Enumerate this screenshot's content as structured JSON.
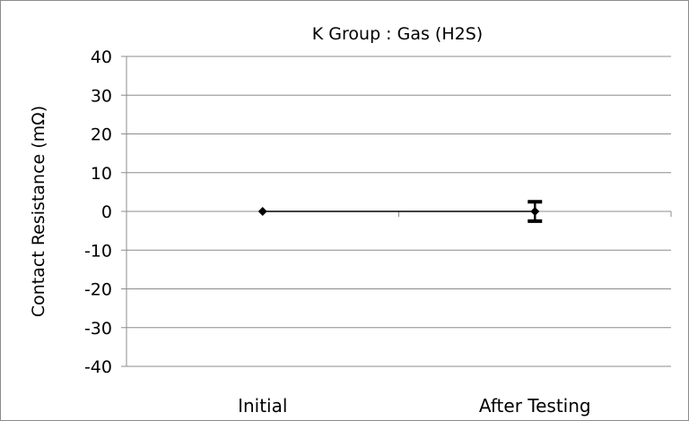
{
  "chart_data": {
    "type": "line",
    "title": "K Group : Gas (H2S)",
    "xlabel": "",
    "ylabel": "Contact Resistance (mΩ)",
    "categories": [
      "Initial",
      "After Testing"
    ],
    "series": [
      {
        "values": [
          0,
          0
        ],
        "error_low": [
          0,
          2.5
        ],
        "error_high": [
          0,
          2.5
        ],
        "color": "#000000",
        "marker": "diamond"
      }
    ],
    "ylim": [
      -40,
      40
    ],
    "yticks": [
      40,
      30,
      20,
      10,
      0,
      -10,
      -20,
      -30,
      -40
    ],
    "ytick_labels": [
      "40",
      "30",
      "20",
      "10",
      "0",
      "-10",
      "-20",
      "-30",
      "-40"
    ],
    "grid": true,
    "legend": "none"
  }
}
